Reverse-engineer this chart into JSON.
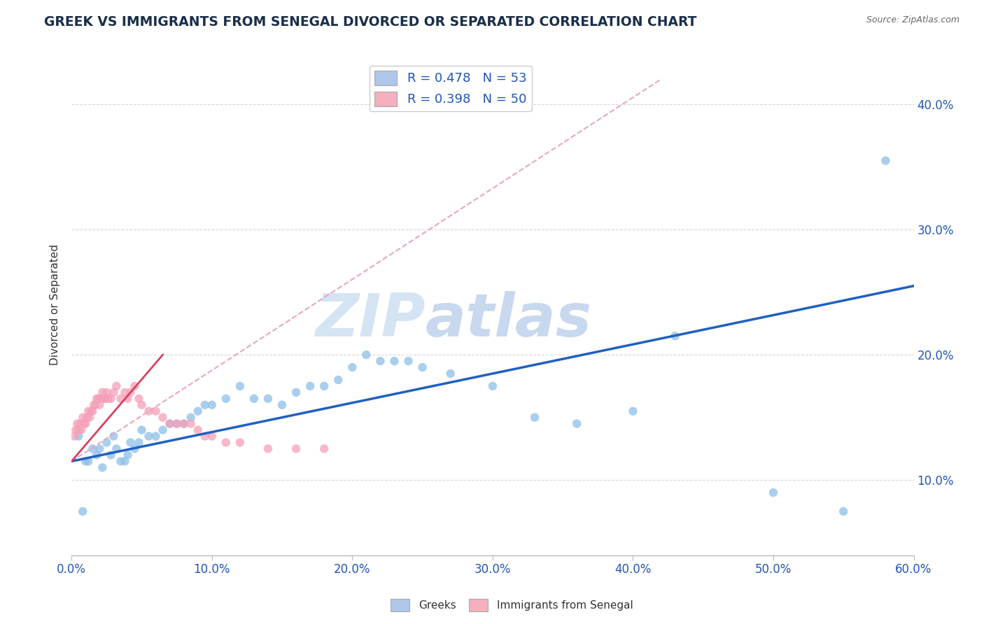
{
  "title": "GREEK VS IMMIGRANTS FROM SENEGAL DIVORCED OR SEPARATED CORRELATION CHART",
  "source": "Source: ZipAtlas.com",
  "ylabel": "Divorced or Separated",
  "xlim": [
    0.0,
    0.6
  ],
  "ylim": [
    0.04,
    0.44
  ],
  "xticks": [
    0.0,
    0.1,
    0.2,
    0.3,
    0.4,
    0.5,
    0.6
  ],
  "yticks": [
    0.1,
    0.2,
    0.3,
    0.4
  ],
  "ytick_labels": [
    "10.0%",
    "20.0%",
    "30.0%",
    "40.0%"
  ],
  "xtick_labels": [
    "0.0%",
    "10.0%",
    "20.0%",
    "30.0%",
    "40.0%",
    "50.0%",
    "60.0%"
  ],
  "legend_entries": [
    {
      "label": "R = 0.478   N = 53",
      "color": "#aec6e8"
    },
    {
      "label": "R = 0.398   N = 50",
      "color": "#f4b0be"
    }
  ],
  "legend_bottom": [
    "Greeks",
    "Immigrants from Senegal"
  ],
  "legend_bottom_colors": [
    "#aec6e8",
    "#f4b0be"
  ],
  "watermark": "ZIPatlas",
  "blue_scatter_x": [
    0.005,
    0.008,
    0.01,
    0.012,
    0.015,
    0.018,
    0.02,
    0.022,
    0.025,
    0.028,
    0.03,
    0.032,
    0.035,
    0.038,
    0.04,
    0.042,
    0.045,
    0.048,
    0.05,
    0.055,
    0.06,
    0.065,
    0.07,
    0.075,
    0.08,
    0.085,
    0.09,
    0.095,
    0.1,
    0.11,
    0.12,
    0.13,
    0.14,
    0.15,
    0.16,
    0.17,
    0.18,
    0.19,
    0.2,
    0.21,
    0.22,
    0.23,
    0.24,
    0.25,
    0.27,
    0.3,
    0.33,
    0.36,
    0.4,
    0.43,
    0.5,
    0.55,
    0.58
  ],
  "blue_scatter_y": [
    0.135,
    0.075,
    0.115,
    0.115,
    0.125,
    0.12,
    0.125,
    0.11,
    0.13,
    0.12,
    0.135,
    0.125,
    0.115,
    0.115,
    0.12,
    0.13,
    0.125,
    0.13,
    0.14,
    0.135,
    0.135,
    0.14,
    0.145,
    0.145,
    0.145,
    0.15,
    0.155,
    0.16,
    0.16,
    0.165,
    0.175,
    0.165,
    0.165,
    0.16,
    0.17,
    0.175,
    0.175,
    0.18,
    0.19,
    0.2,
    0.195,
    0.195,
    0.195,
    0.19,
    0.185,
    0.175,
    0.15,
    0.145,
    0.155,
    0.215,
    0.09,
    0.075,
    0.355
  ],
  "pink_scatter_x": [
    0.002,
    0.003,
    0.004,
    0.005,
    0.006,
    0.007,
    0.008,
    0.009,
    0.01,
    0.011,
    0.012,
    0.013,
    0.014,
    0.015,
    0.016,
    0.017,
    0.018,
    0.019,
    0.02,
    0.021,
    0.022,
    0.023,
    0.024,
    0.025,
    0.026,
    0.028,
    0.03,
    0.032,
    0.035,
    0.038,
    0.04,
    0.042,
    0.045,
    0.048,
    0.05,
    0.055,
    0.06,
    0.065,
    0.07,
    0.075,
    0.08,
    0.085,
    0.09,
    0.095,
    0.1,
    0.11,
    0.12,
    0.14,
    0.16,
    0.18
  ],
  "pink_scatter_y": [
    0.135,
    0.14,
    0.145,
    0.14,
    0.145,
    0.14,
    0.15,
    0.145,
    0.145,
    0.15,
    0.155,
    0.15,
    0.155,
    0.155,
    0.16,
    0.16,
    0.165,
    0.165,
    0.16,
    0.165,
    0.17,
    0.165,
    0.165,
    0.17,
    0.165,
    0.165,
    0.17,
    0.175,
    0.165,
    0.17,
    0.165,
    0.17,
    0.175,
    0.165,
    0.16,
    0.155,
    0.155,
    0.15,
    0.145,
    0.145,
    0.145,
    0.145,
    0.14,
    0.135,
    0.135,
    0.13,
    0.13,
    0.125,
    0.125,
    0.125
  ],
  "blue_line_x": [
    0.0,
    0.6
  ],
  "blue_line_y": [
    0.115,
    0.255
  ],
  "pink_solid_line_x": [
    0.0,
    0.065
  ],
  "pink_solid_line_y": [
    0.115,
    0.2
  ],
  "pink_dashed_line_x": [
    0.0,
    0.42
  ],
  "pink_dashed_line_y": [
    0.115,
    0.42
  ],
  "blue_scatter_color": "#8cc0e8",
  "pink_scatter_color": "#f5a0b8",
  "blue_line_color": "#2060c0",
  "pink_solid_color": "#d84060",
  "pink_dashed_color": "#e8a8b8",
  "title_color": "#1a2e4a",
  "axis_color": "#2255bb",
  "background_color": "#ffffff",
  "watermark_color": "#dce8f5",
  "grid_color": "#d8d8d8"
}
